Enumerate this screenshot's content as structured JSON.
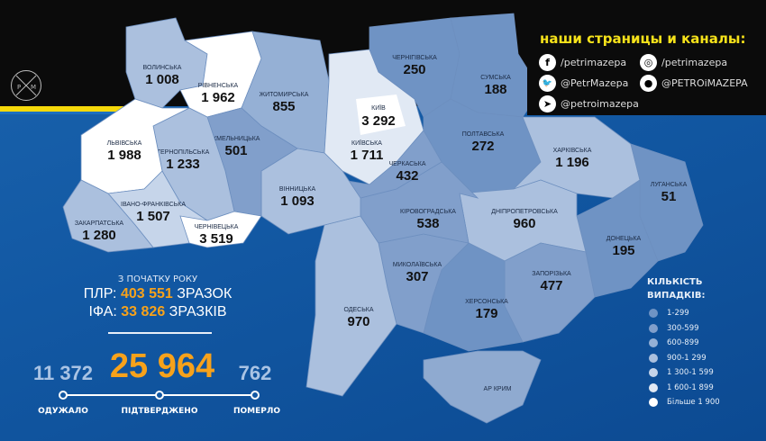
{
  "social": {
    "title": "наши страницы и каналы:",
    "items": [
      {
        "icon": "facebook-icon",
        "glyph": "f",
        "text": "/petrimazepa"
      },
      {
        "icon": "instagram-icon",
        "glyph": "◎",
        "text": "/petrimazepa"
      },
      {
        "icon": "twitter-icon",
        "glyph": "🐦",
        "text": "@PetrMazepa"
      },
      {
        "icon": "reddit-icon",
        "glyph": "●",
        "text": "@PETROiMAZEPA"
      },
      {
        "icon": "telegram-icon",
        "glyph": "➤",
        "text": "@petroimazepa"
      }
    ]
  },
  "logo": {
    "text": "P M"
  },
  "regions": [
    {
      "name": "ВОЛИНСЬКА",
      "value": "1 008",
      "n": 1008
    },
    {
      "name": "РІВНЕНСЬКА",
      "value": "1 962",
      "n": 1962
    },
    {
      "name": "ЖИТОМИРСЬКА",
      "value": "855",
      "n": 855
    },
    {
      "name": "КИЇВСЬКА",
      "value": "1 711",
      "n": 1711
    },
    {
      "name": "ЧЕРНІГІВСЬКА",
      "value": "250",
      "n": 250
    },
    {
      "name": "СУМСЬКА",
      "value": "188",
      "n": 188
    },
    {
      "name": "ПОЛТАВСЬКА",
      "value": "272",
      "n": 272
    },
    {
      "name": "ХАРКІВСЬКА",
      "value": "1 196",
      "n": 1196
    },
    {
      "name": "ЛУГАНСЬКА",
      "value": "51",
      "n": 51
    },
    {
      "name": "ДОНЕЦЬКА",
      "value": "195",
      "n": 195
    },
    {
      "name": "ДНІПРОПЕТРОВСЬКА",
      "value": "960",
      "n": 960
    },
    {
      "name": "ЗАПОРІЗЬКА",
      "value": "477",
      "n": 477
    },
    {
      "name": "ХЕРСОНСЬКА",
      "value": "179",
      "n": 179
    },
    {
      "name": "АР КРИМ",
      "value": "",
      "n": 0
    },
    {
      "name": "МИКОЛАЇВСЬКА",
      "value": "307",
      "n": 307
    },
    {
      "name": "ОДЕСЬКА",
      "value": "970",
      "n": 970
    },
    {
      "name": "КІРОВОГРАДСЬКА",
      "value": "538",
      "n": 538
    },
    {
      "name": "ЧЕРКАСЬКА",
      "value": "432",
      "n": 432
    },
    {
      "name": "ВІННИЦЬКА",
      "value": "1 093",
      "n": 1093
    },
    {
      "name": "ХМЕЛЬНИЦЬКА",
      "value": "501",
      "n": 501
    },
    {
      "name": "ТЕРНОПІЛЬСЬКА",
      "value": "1 233",
      "n": 1233
    },
    {
      "name": "ЛЬВІВСЬКА",
      "value": "1 988",
      "n": 1988
    },
    {
      "name": "ІВАНО-ФРАНКІВСЬКА",
      "value": "1 507",
      "n": 1507
    },
    {
      "name": "ЗАКАРПАТСЬКА",
      "value": "1 280",
      "n": 1280
    },
    {
      "name": "ЧЕРНІВЕЦЬКА",
      "value": "3 519",
      "n": 3519
    }
  ],
  "kyiv_city": {
    "name": "КИЇВ",
    "value": "3 292",
    "n": 3292
  },
  "tests": {
    "since": "З ПОЧАТКУ РОКУ",
    "pcr_label": "ПЛР:",
    "pcr_value": "403 551",
    "pcr_unit": "ЗРАЗОК",
    "ifa_label": "ІФА:",
    "ifa_value": "33 826",
    "ifa_unit": "ЗРАЗКІВ"
  },
  "totals": {
    "recovered": "11 372",
    "recovered_label": "ОДУЖАЛО",
    "confirmed": "25 964",
    "confirmed_label": "ПІДТВЕРДЖЕНО",
    "died": "762",
    "died_label": "ПОМЕРЛО"
  },
  "legend": {
    "title1": "КІЛЬКІСТЬ",
    "title2": "ВИПАДКІВ:",
    "items": [
      {
        "label": "1-299",
        "color": "#6f93c4"
      },
      {
        "label": "300-599",
        "color": "#819fcb"
      },
      {
        "label": "600-899",
        "color": "#95b0d5"
      },
      {
        "label": "900-1 299",
        "color": "#abc0de"
      },
      {
        "label": "1 300-1 599",
        "color": "#c6d5ea"
      },
      {
        "label": "1 600-1 899",
        "color": "#e1e9f4"
      },
      {
        "label": "Більше 1 900",
        "color": "#ffffff"
      }
    ]
  },
  "colors": {
    "accent": "#f7a21b",
    "title_yellow": "#f6e21a",
    "sea": "#1258a3"
  }
}
